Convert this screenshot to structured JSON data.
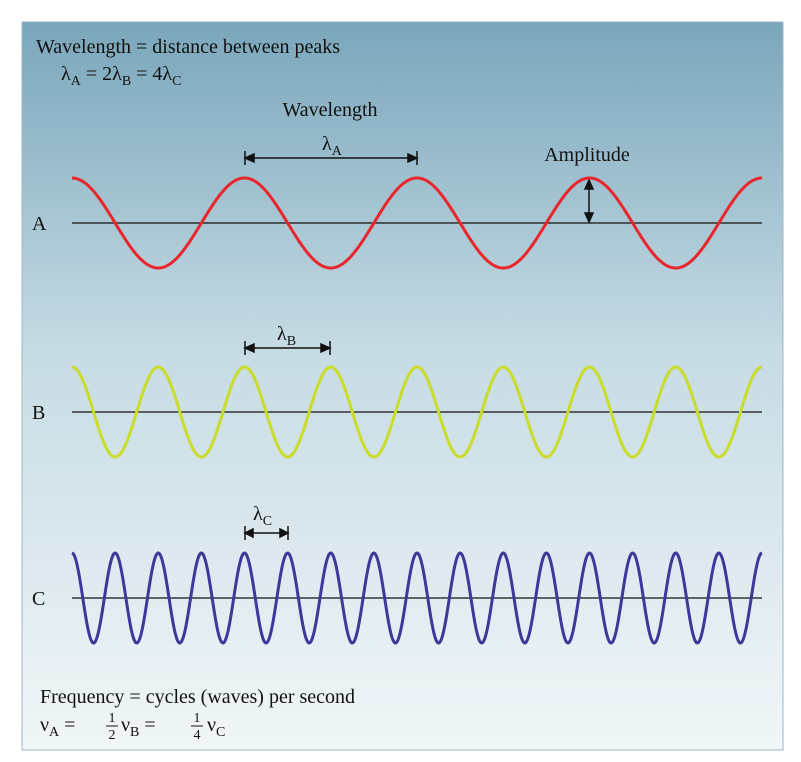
{
  "header": {
    "definition": "Wavelength = distance between peaks",
    "relation": [
      "λ",
      "A",
      " = 2λ",
      "B",
      " = 4λ",
      "C"
    ]
  },
  "labels": {
    "wavelength": "Wavelength",
    "lambda_a": [
      "λ",
      "A"
    ],
    "amplitude": "Amplitude",
    "lambda_b": [
      "λ",
      "B"
    ],
    "lambda_c": [
      "λ",
      "C"
    ]
  },
  "waves": [
    {
      "label": "A"
    },
    {
      "label": "B"
    },
    {
      "label": "C"
    }
  ],
  "footer": {
    "definition": "Frequency = cycles (waves) per second",
    "relation": [
      "ν",
      "A",
      " = ",
      "1",
      "2",
      "ν",
      "B",
      " = ",
      "1",
      "4",
      "ν",
      "C"
    ]
  }
}
